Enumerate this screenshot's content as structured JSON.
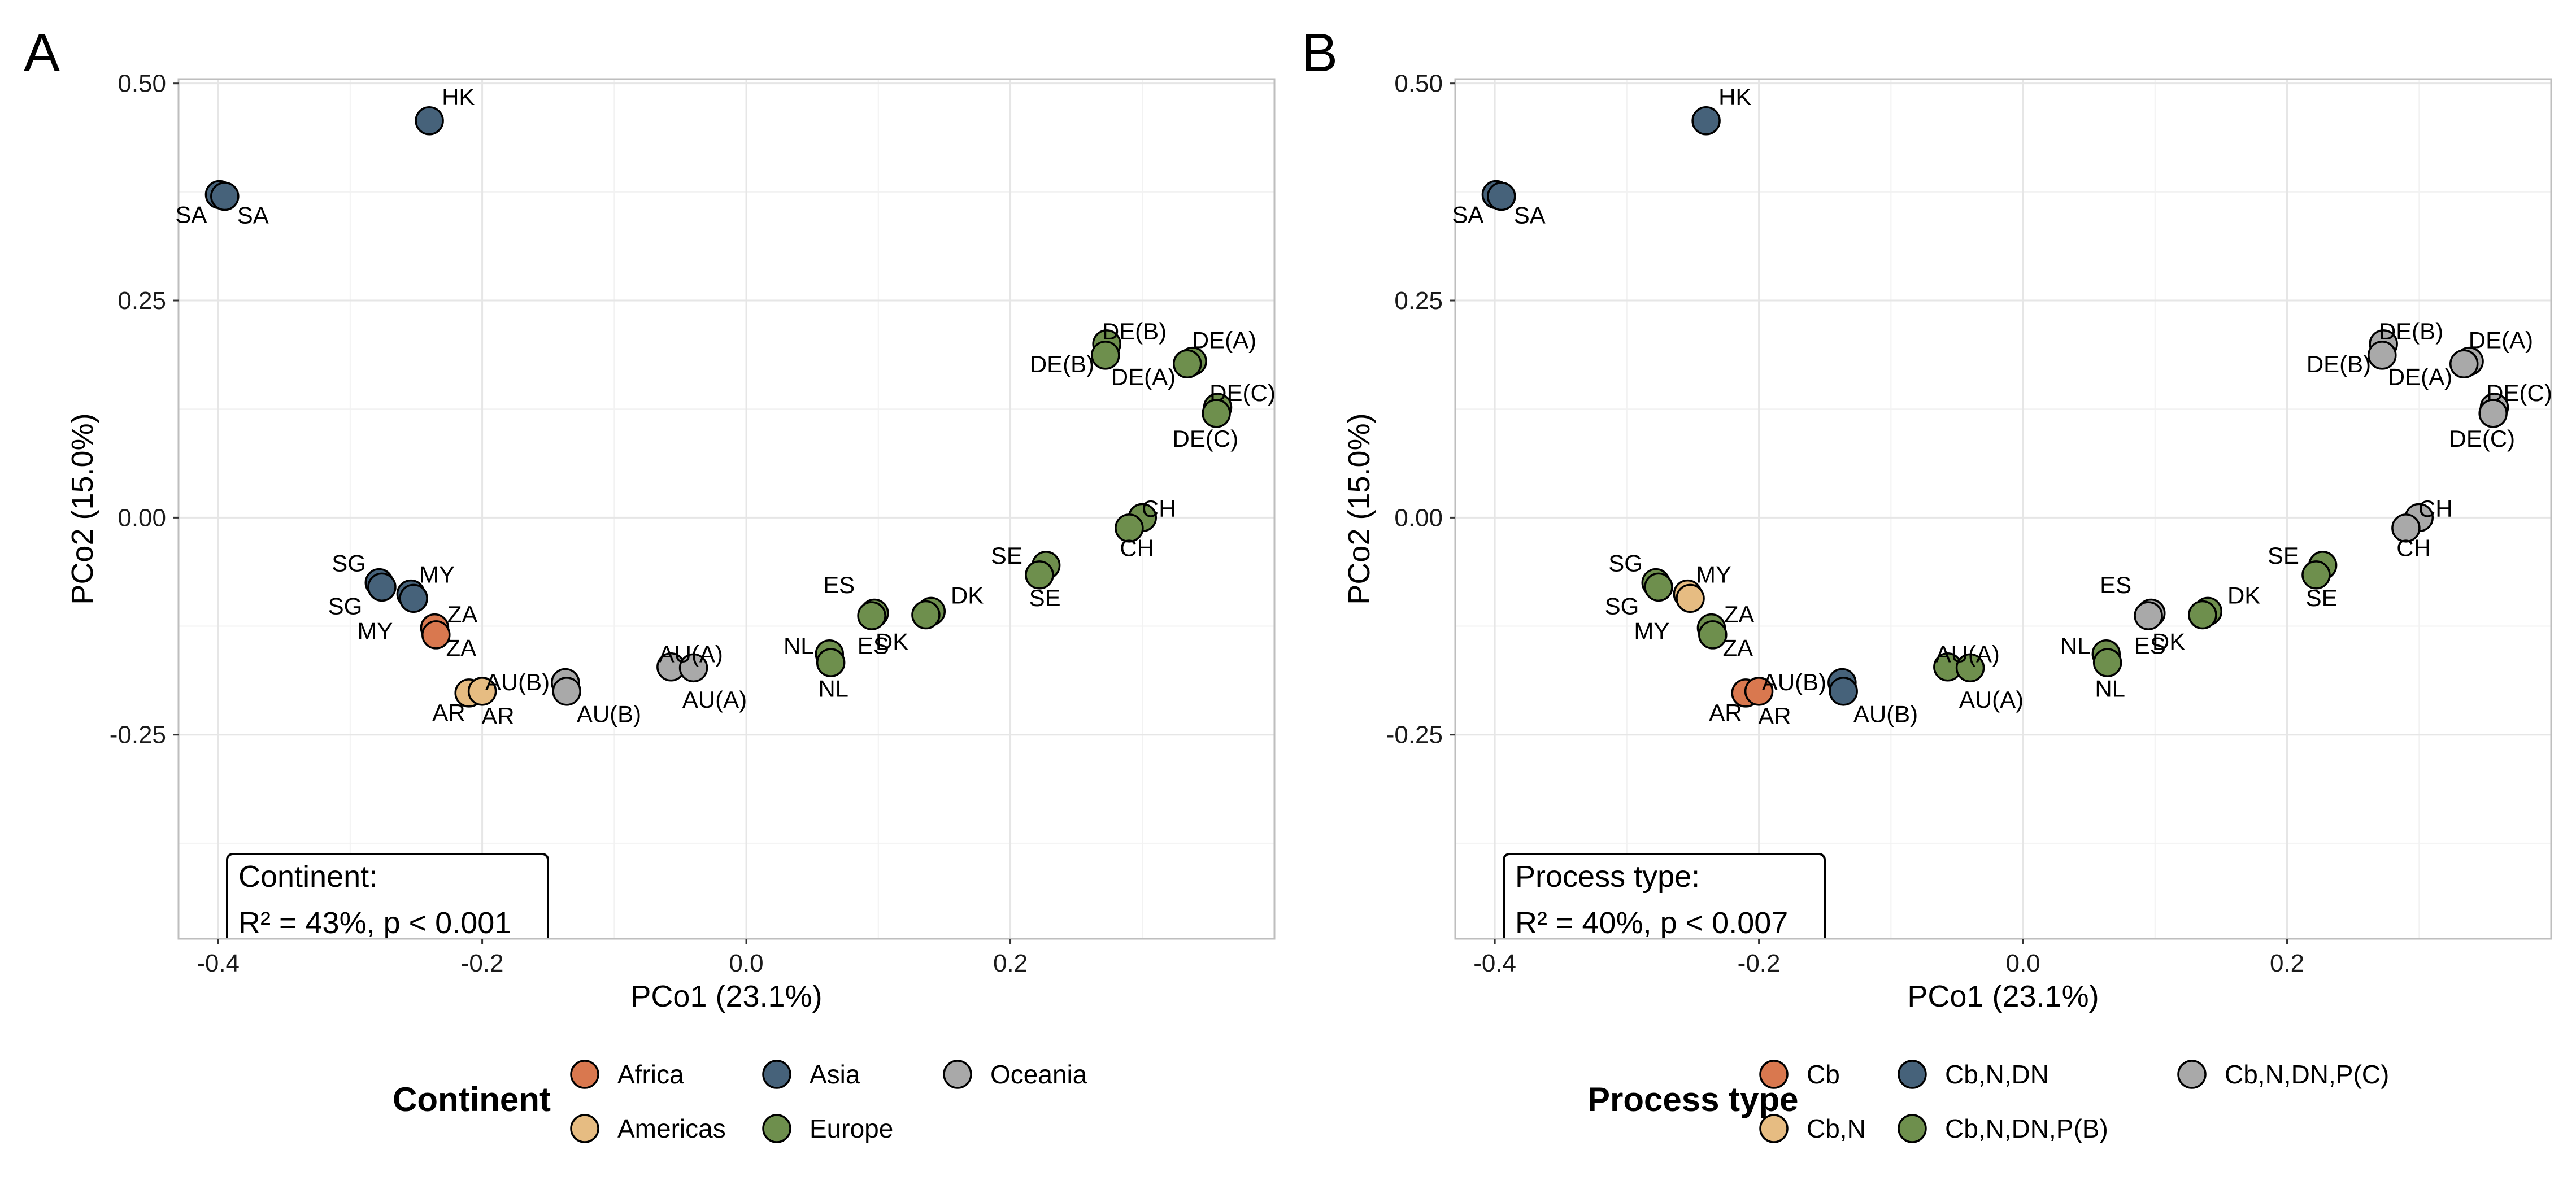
{
  "colors": {
    "Africa": "#D9784F",
    "Americas": "#E6BC82",
    "Asia": "#46627A",
    "Oceania": "#A9A9A9",
    "Europe": "#6E8F4D",
    "Cb": "#D9784F",
    "Cb,N": "#E6BC82",
    "Cb,N,DN": "#46627A",
    "Cb,N,DN,P(C)": "#A9A9A9",
    "Cb,N,DN,P(B)": "#6E8F4D"
  },
  "chart_data": [
    {
      "type": "scatter",
      "panel_label": "A",
      "xlabel": "PCo1 (23.1%)",
      "ylabel": "PCo2 (15.0%)",
      "xlim": [
        -0.43,
        0.4
      ],
      "ylim": [
        -0.485,
        0.505
      ],
      "xticks": [
        -0.4,
        -0.2,
        0.0,
        0.2
      ],
      "xtick_labels": [
        "-0.4",
        "-0.2",
        "0.0",
        "0.2"
      ],
      "yticks": [
        -0.25,
        0.0,
        0.25,
        0.5
      ],
      "ytick_labels": [
        "-0.25",
        "0.00",
        "0.25",
        "0.50"
      ],
      "grid": true,
      "annotation": {
        "line1": "Continent:",
        "line2": "R² = 43%, p < 0.001"
      },
      "legend": {
        "title": "Continent",
        "position": "bottom",
        "items": [
          {
            "label": "Africa",
            "color": "#D9784F"
          },
          {
            "label": "Americas",
            "color": "#E6BC82"
          },
          {
            "label": "Asia",
            "color": "#46627A"
          },
          {
            "label": "Europe",
            "color": "#6E8F4D"
          },
          {
            "label": "Oceania",
            "color": "#A9A9A9"
          }
        ]
      },
      "points": [
        {
          "label": "HK",
          "x": -0.24,
          "y": 0.457,
          "group": "Asia"
        },
        {
          "label": "SA",
          "x": -0.399,
          "y": 0.372,
          "group": "Asia"
        },
        {
          "label": "SA",
          "x": -0.395,
          "y": 0.37,
          "group": "Asia"
        },
        {
          "label": "DE(B)",
          "x": 0.273,
          "y": 0.2,
          "group": "Europe"
        },
        {
          "label": "DE(B)",
          "x": 0.272,
          "y": 0.187,
          "group": "Europe"
        },
        {
          "label": "DE(A)",
          "x": 0.338,
          "y": 0.18,
          "group": "Europe"
        },
        {
          "label": "DE(A)",
          "x": 0.334,
          "y": 0.177,
          "group": "Europe"
        },
        {
          "label": "DE(C)",
          "x": 0.357,
          "y": 0.127,
          "group": "Europe"
        },
        {
          "label": "DE(C)",
          "x": 0.356,
          "y": 0.12,
          "group": "Europe"
        },
        {
          "label": "CH",
          "x": 0.3,
          "y": 0.0,
          "group": "Europe"
        },
        {
          "label": "CH",
          "x": 0.29,
          "y": -0.012,
          "group": "Europe"
        },
        {
          "label": "SE",
          "x": 0.227,
          "y": -0.055,
          "group": "Europe"
        },
        {
          "label": "SE",
          "x": 0.222,
          "y": -0.066,
          "group": "Europe"
        },
        {
          "label": "DK",
          "x": 0.14,
          "y": -0.108,
          "group": "Europe"
        },
        {
          "label": "DK",
          "x": 0.136,
          "y": -0.112,
          "group": "Europe"
        },
        {
          "label": "ES",
          "x": 0.097,
          "y": -0.11,
          "group": "Europe"
        },
        {
          "label": "ES",
          "x": 0.095,
          "y": -0.113,
          "group": "Europe"
        },
        {
          "label": "NL",
          "x": 0.063,
          "y": -0.157,
          "group": "Europe"
        },
        {
          "label": "NL",
          "x": 0.064,
          "y": -0.167,
          "group": "Europe"
        },
        {
          "label": "AU(A)",
          "x": -0.057,
          "y": -0.172,
          "group": "Oceania"
        },
        {
          "label": "AU(A)",
          "x": -0.04,
          "y": -0.173,
          "group": "Oceania"
        },
        {
          "label": "AU(B)",
          "x": -0.137,
          "y": -0.19,
          "group": "Oceania"
        },
        {
          "label": "AU(B)",
          "x": -0.136,
          "y": -0.2,
          "group": "Oceania"
        },
        {
          "label": "AR",
          "x": -0.21,
          "y": -0.202,
          "group": "Americas"
        },
        {
          "label": "AR",
          "x": -0.2,
          "y": -0.2,
          "group": "Americas"
        },
        {
          "label": "ZA",
          "x": -0.236,
          "y": -0.127,
          "group": "Africa"
        },
        {
          "label": "ZA",
          "x": -0.235,
          "y": -0.135,
          "group": "Africa"
        },
        {
          "label": "SG",
          "x": -0.278,
          "y": -0.075,
          "group": "Asia"
        },
        {
          "label": "SG",
          "x": -0.276,
          "y": -0.08,
          "group": "Asia"
        },
        {
          "label": "MY",
          "x": -0.254,
          "y": -0.088,
          "group": "Asia"
        },
        {
          "label": "MY",
          "x": -0.252,
          "y": -0.093,
          "group": "Asia"
        }
      ]
    },
    {
      "type": "scatter",
      "panel_label": "B",
      "xlabel": "PCo1 (23.1%)",
      "ylabel": "PCo2 (15.0%)",
      "xlim": [
        -0.43,
        0.4
      ],
      "ylim": [
        -0.485,
        0.505
      ],
      "xticks": [
        -0.4,
        -0.2,
        0.0,
        0.2
      ],
      "xtick_labels": [
        "-0.4",
        "-0.2",
        "0.0",
        "0.2"
      ],
      "yticks": [
        -0.25,
        0.0,
        0.25,
        0.5
      ],
      "ytick_labels": [
        "-0.25",
        "0.00",
        "0.25",
        "0.50"
      ],
      "grid": true,
      "annotation": {
        "line1": "Process type:",
        "line2": "R² = 40%, p < 0.007"
      },
      "legend": {
        "title": "Process type",
        "position": "bottom",
        "items": [
          {
            "label": "Cb",
            "color": "#D9784F"
          },
          {
            "label": "Cb,N",
            "color": "#E6BC82"
          },
          {
            "label": "Cb,N,DN",
            "color": "#46627A"
          },
          {
            "label": "Cb,N,DN,P(B)",
            "color": "#6E8F4D"
          },
          {
            "label": "Cb,N,DN,P(C)",
            "color": "#A9A9A9"
          }
        ]
      },
      "points": [
        {
          "label": "HK",
          "x": -0.24,
          "y": 0.457,
          "group": "Cb,N,DN"
        },
        {
          "label": "SA",
          "x": -0.399,
          "y": 0.372,
          "group": "Cb,N,DN"
        },
        {
          "label": "SA",
          "x": -0.395,
          "y": 0.37,
          "group": "Cb,N,DN"
        },
        {
          "label": "DE(B)",
          "x": 0.273,
          "y": 0.2,
          "group": "Cb,N,DN,P(C)"
        },
        {
          "label": "DE(B)",
          "x": 0.272,
          "y": 0.187,
          "group": "Cb,N,DN,P(C)"
        },
        {
          "label": "DE(A)",
          "x": 0.338,
          "y": 0.18,
          "group": "Cb,N,DN,P(C)"
        },
        {
          "label": "DE(A)",
          "x": 0.334,
          "y": 0.177,
          "group": "Cb,N,DN,P(C)"
        },
        {
          "label": "DE(C)",
          "x": 0.357,
          "y": 0.127,
          "group": "Cb,N,DN,P(C)"
        },
        {
          "label": "DE(C)",
          "x": 0.356,
          "y": 0.12,
          "group": "Cb,N,DN,P(C)"
        },
        {
          "label": "CH",
          "x": 0.3,
          "y": 0.0,
          "group": "Cb,N,DN,P(C)"
        },
        {
          "label": "CH",
          "x": 0.29,
          "y": -0.012,
          "group": "Cb,N,DN,P(C)"
        },
        {
          "label": "SE",
          "x": 0.227,
          "y": -0.055,
          "group": "Cb,N,DN,P(B)"
        },
        {
          "label": "SE",
          "x": 0.222,
          "y": -0.066,
          "group": "Cb,N,DN,P(B)"
        },
        {
          "label": "DK",
          "x": 0.14,
          "y": -0.108,
          "group": "Cb,N,DN,P(B)"
        },
        {
          "label": "DK",
          "x": 0.136,
          "y": -0.112,
          "group": "Cb,N,DN,P(B)"
        },
        {
          "label": "ES",
          "x": 0.097,
          "y": -0.11,
          "group": "Cb,N,DN,P(C)"
        },
        {
          "label": "ES",
          "x": 0.095,
          "y": -0.113,
          "group": "Cb,N,DN,P(C)"
        },
        {
          "label": "NL",
          "x": 0.063,
          "y": -0.157,
          "group": "Cb,N,DN,P(B)"
        },
        {
          "label": "NL",
          "x": 0.064,
          "y": -0.167,
          "group": "Cb,N,DN,P(B)"
        },
        {
          "label": "AU(A)",
          "x": -0.057,
          "y": -0.172,
          "group": "Cb,N,DN,P(B)"
        },
        {
          "label": "AU(A)",
          "x": -0.04,
          "y": -0.173,
          "group": "Cb,N,DN,P(B)"
        },
        {
          "label": "AU(B)",
          "x": -0.137,
          "y": -0.19,
          "group": "Cb,N,DN"
        },
        {
          "label": "AU(B)",
          "x": -0.136,
          "y": -0.2,
          "group": "Cb,N,DN"
        },
        {
          "label": "AR",
          "x": -0.21,
          "y": -0.202,
          "group": "Cb"
        },
        {
          "label": "AR",
          "x": -0.2,
          "y": -0.2,
          "group": "Cb"
        },
        {
          "label": "ZA",
          "x": -0.236,
          "y": -0.127,
          "group": "Cb,N,DN,P(B)"
        },
        {
          "label": "ZA",
          "x": -0.235,
          "y": -0.135,
          "group": "Cb,N,DN,P(B)"
        },
        {
          "label": "SG",
          "x": -0.278,
          "y": -0.075,
          "group": "Cb,N,DN,P(B)"
        },
        {
          "label": "SG",
          "x": -0.276,
          "y": -0.08,
          "group": "Cb,N,DN,P(B)"
        },
        {
          "label": "MY",
          "x": -0.254,
          "y": -0.088,
          "group": "Cb,N"
        },
        {
          "label": "MY",
          "x": -0.252,
          "y": -0.093,
          "group": "Cb,N"
        }
      ]
    }
  ]
}
